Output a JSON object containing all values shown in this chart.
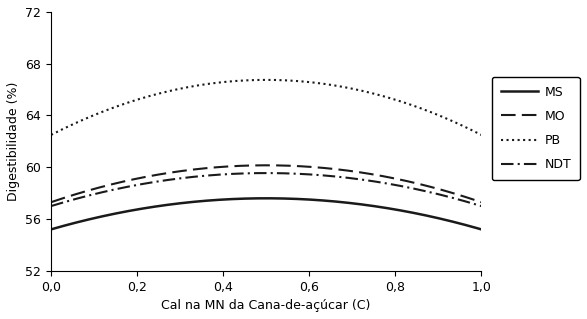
{
  "xlabel": "Cal na MN da Cana-de-açúcar (C)",
  "ylabel": "Digestibilidade (%)",
  "xlim": [
    0.0,
    1.0
  ],
  "ylim": [
    52,
    72
  ],
  "yticks": [
    52,
    56,
    60,
    64,
    68,
    72
  ],
  "xticks": [
    0.0,
    0.2,
    0.4,
    0.6,
    0.8,
    1.0
  ],
  "curves": {
    "MS": {
      "a": 55.2,
      "b": 9.6,
      "c": -9.6,
      "lw": 1.8,
      "linestyle": "solid"
    },
    "MO": {
      "a": 57.3,
      "b": 11.4,
      "c": -11.4,
      "lw": 1.5,
      "linestyle": "dashed"
    },
    "PB": {
      "a": 62.5,
      "b": 17.0,
      "c": -17.0,
      "lw": 1.5,
      "linestyle": "dotted"
    },
    "NDT": {
      "a": 57.0,
      "b": 10.2,
      "c": -10.2,
      "lw": 1.5,
      "linestyle": "dashdot"
    }
  },
  "legend_labels": [
    "MS",
    "MO",
    "PB",
    "NDT"
  ],
  "figsize": [
    5.87,
    3.19
  ],
  "dpi": 100,
  "color": "#1a1a1a"
}
